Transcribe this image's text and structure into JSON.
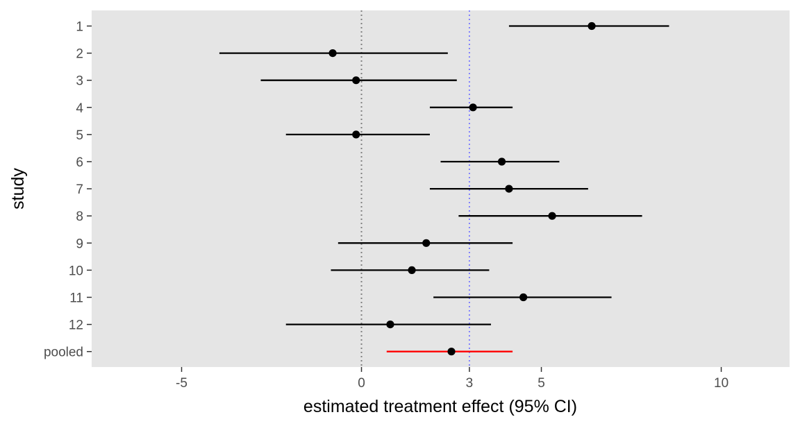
{
  "chart_data": {
    "type": "forest",
    "title": "",
    "xlabel": "estimated treatment effect (95% CI)",
    "ylabel": "study",
    "xlim": [
      -7.5,
      11.9
    ],
    "x_ticks": [
      {
        "value": -5,
        "label": "-5"
      },
      {
        "value": 0,
        "label": "0"
      },
      {
        "value": 3,
        "label": "3"
      },
      {
        "value": 5,
        "label": "5"
      },
      {
        "value": 10,
        "label": "10"
      }
    ],
    "reference_lines": [
      {
        "value": 0,
        "color": "#808080",
        "style": "dotted"
      },
      {
        "value": 3,
        "color": "#8080ff",
        "style": "dotted"
      }
    ],
    "studies": [
      {
        "label": "1",
        "estimate": 6.4,
        "lower": 4.1,
        "upper": 8.55
      },
      {
        "label": "2",
        "estimate": -0.8,
        "lower": -3.95,
        "upper": 2.4
      },
      {
        "label": "3",
        "estimate": -0.15,
        "lower": -2.8,
        "upper": 2.65
      },
      {
        "label": "4",
        "estimate": 3.1,
        "lower": 1.9,
        "upper": 4.2
      },
      {
        "label": "5",
        "estimate": -0.15,
        "lower": -2.1,
        "upper": 1.9
      },
      {
        "label": "6",
        "estimate": 3.9,
        "lower": 2.2,
        "upper": 5.5
      },
      {
        "label": "7",
        "estimate": 4.1,
        "lower": 1.9,
        "upper": 6.3
      },
      {
        "label": "8",
        "estimate": 5.3,
        "lower": 2.7,
        "upper": 7.8
      },
      {
        "label": "9",
        "estimate": 1.8,
        "lower": -0.65,
        "upper": 4.2
      },
      {
        "label": "10",
        "estimate": 1.4,
        "lower": -0.85,
        "upper": 3.55
      },
      {
        "label": "11",
        "estimate": 4.5,
        "lower": 2.0,
        "upper": 6.95
      },
      {
        "label": "12",
        "estimate": 0.8,
        "lower": -2.1,
        "upper": 3.6
      },
      {
        "label": "pooled",
        "estimate": 2.5,
        "lower": 0.7,
        "upper": 4.2,
        "color": "#ff0000"
      }
    ],
    "panel_background": "#e5e5e5",
    "grid": false,
    "legend": "none"
  }
}
